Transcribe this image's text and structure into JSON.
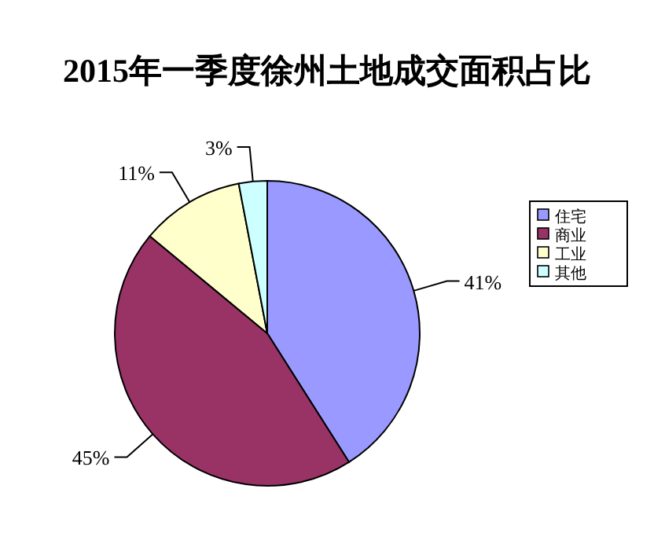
{
  "chart_data": {
    "type": "pie",
    "title": "2015年一季度徐州土地成交面积占比",
    "categories": [
      "住宅",
      "商业",
      "工业",
      "其他"
    ],
    "values": [
      41,
      45,
      11,
      3
    ],
    "colors": [
      "#9999ff",
      "#993366",
      "#ffffcc",
      "#ccffff"
    ],
    "value_labels": [
      "41%",
      "45%",
      "11%",
      "3%"
    ],
    "legend": "right"
  }
}
